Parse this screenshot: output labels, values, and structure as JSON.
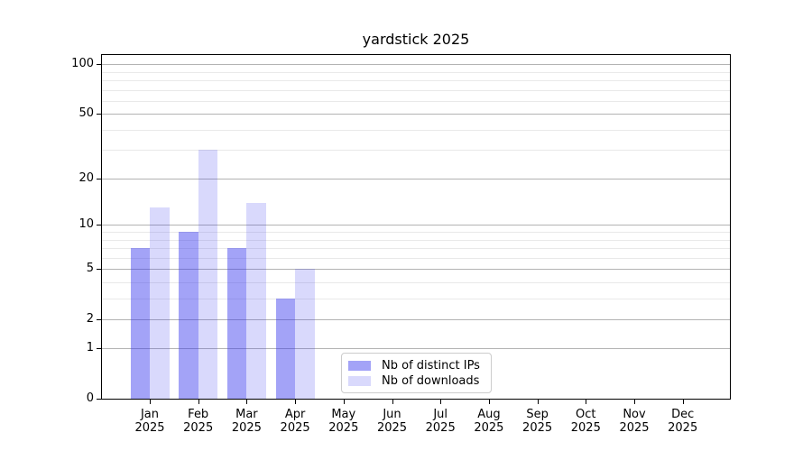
{
  "chart_data": {
    "type": "bar",
    "title": "yardstick 2025",
    "categories": [
      "Jan",
      "Feb",
      "Mar",
      "Apr",
      "May",
      "Jun",
      "Jul",
      "Aug",
      "Sep",
      "Oct",
      "Nov",
      "Dec"
    ],
    "x_tick_second_line": "2025",
    "series": [
      {
        "name": "Nb of distinct IPs",
        "color": "rgba(51,51,237,0.45)",
        "values": [
          7,
          9,
          7,
          3,
          0,
          0,
          0,
          0,
          0,
          0,
          0,
          0
        ]
      },
      {
        "name": "Nb of downloads",
        "color": "rgba(51,51,237,0.19)",
        "values": [
          13,
          30,
          14,
          5,
          0,
          0,
          0,
          0,
          0,
          0,
          0,
          0
        ]
      }
    ],
    "y_axis": {
      "scale": "log1p",
      "min": 0,
      "max": 114,
      "major_ticks": [
        0,
        1,
        2,
        5,
        10,
        20,
        50,
        100
      ],
      "minor_ticks": [
        3,
        4,
        6,
        7,
        8,
        9,
        30,
        40,
        60,
        70,
        80,
        90
      ]
    },
    "grid": true,
    "legend_position": "inside-bottom-left-of-center",
    "colors": {
      "major_grid": "#b3b3b3",
      "minor_grid": "#e9e9e9",
      "axis": "#000000",
      "text": "#000000"
    }
  }
}
